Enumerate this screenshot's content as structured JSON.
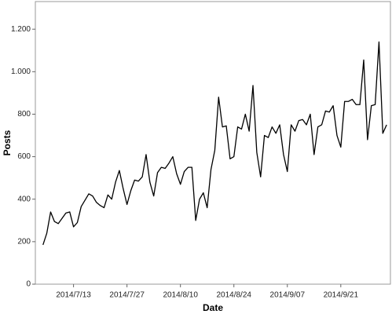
{
  "chart_data": {
    "type": "line",
    "x_label": "Date",
    "y_label": "Posts",
    "x": [
      "2014-07-05",
      "2014-07-06",
      "2014-07-07",
      "2014-07-08",
      "2014-07-09",
      "2014-07-10",
      "2014-07-11",
      "2014-07-12",
      "2014-07-13",
      "2014-07-14",
      "2014-07-15",
      "2014-07-16",
      "2014-07-17",
      "2014-07-18",
      "2014-07-19",
      "2014-07-20",
      "2014-07-21",
      "2014-07-22",
      "2014-07-23",
      "2014-07-24",
      "2014-07-25",
      "2014-07-26",
      "2014-07-27",
      "2014-07-28",
      "2014-07-29",
      "2014-07-30",
      "2014-07-31",
      "2014-08-01",
      "2014-08-02",
      "2014-08-03",
      "2014-08-04",
      "2014-08-05",
      "2014-08-06",
      "2014-08-07",
      "2014-08-08",
      "2014-08-09",
      "2014-08-10",
      "2014-08-11",
      "2014-08-12",
      "2014-08-13",
      "2014-08-14",
      "2014-08-15",
      "2014-08-16",
      "2014-08-17",
      "2014-08-18",
      "2014-08-19",
      "2014-08-20",
      "2014-08-21",
      "2014-08-22",
      "2014-08-23",
      "2014-08-24",
      "2014-08-25",
      "2014-08-26",
      "2014-08-27",
      "2014-08-28",
      "2014-08-29",
      "2014-08-30",
      "2014-08-31",
      "2014-09-01",
      "2014-09-02",
      "2014-09-03",
      "2014-09-04",
      "2014-09-05",
      "2014-09-06",
      "2014-09-07",
      "2014-09-08",
      "2014-09-09",
      "2014-09-10",
      "2014-09-11",
      "2014-09-12",
      "2014-09-13",
      "2014-09-14",
      "2014-09-15",
      "2014-09-16",
      "2014-09-17",
      "2014-09-18",
      "2014-09-19",
      "2014-09-20",
      "2014-09-21",
      "2014-09-22",
      "2014-09-23",
      "2014-09-24",
      "2014-09-25",
      "2014-09-26",
      "2014-09-27",
      "2014-09-28",
      "2014-09-29",
      "2014-09-30",
      "2014-10-01",
      "2014-10-02",
      "2014-10-03"
    ],
    "series": [
      {
        "color": "#000000",
        "values": [
          185,
          240,
          340,
          295,
          285,
          310,
          335,
          340,
          270,
          290,
          365,
          395,
          425,
          415,
          385,
          370,
          360,
          420,
          400,
          480,
          535,
          450,
          375,
          440,
          490,
          485,
          505,
          610,
          480,
          415,
          525,
          550,
          545,
          570,
          600,
          520,
          470,
          530,
          550,
          550,
          300,
          400,
          430,
          360,
          540,
          630,
          880,
          740,
          745,
          590,
          600,
          740,
          730,
          800,
          720,
          935,
          620,
          505,
          700,
          690,
          740,
          710,
          750,
          610,
          530,
          750,
          720,
          770,
          775,
          750,
          800,
          610,
          740,
          750,
          815,
          810,
          840,
          700,
          645,
          860,
          860,
          870,
          845,
          845,
          1055,
          680,
          840,
          845,
          1140,
          710,
          750
        ]
      }
    ],
    "xlim": [
      "2014-07-03",
      "2014-10-04"
    ],
    "xticks": [
      {
        "value": "2014-07-13",
        "label": "2014/7/13"
      },
      {
        "value": "2014-07-27",
        "label": "2014/7/27"
      },
      {
        "value": "2014-08-10",
        "label": "2014/8/10"
      },
      {
        "value": "2014-08-24",
        "label": "2014/8/24"
      },
      {
        "value": "2014-09-07",
        "label": "2014/9/07"
      },
      {
        "value": "2014-09-21",
        "label": "2014/9/21"
      }
    ],
    "ylim": [
      0,
      1330
    ],
    "yticks": [
      0,
      200,
      400,
      600,
      800,
      {
        "value": 1000,
        "label": "1.000"
      },
      {
        "value": 1200,
        "label": "1.200"
      }
    ]
  }
}
